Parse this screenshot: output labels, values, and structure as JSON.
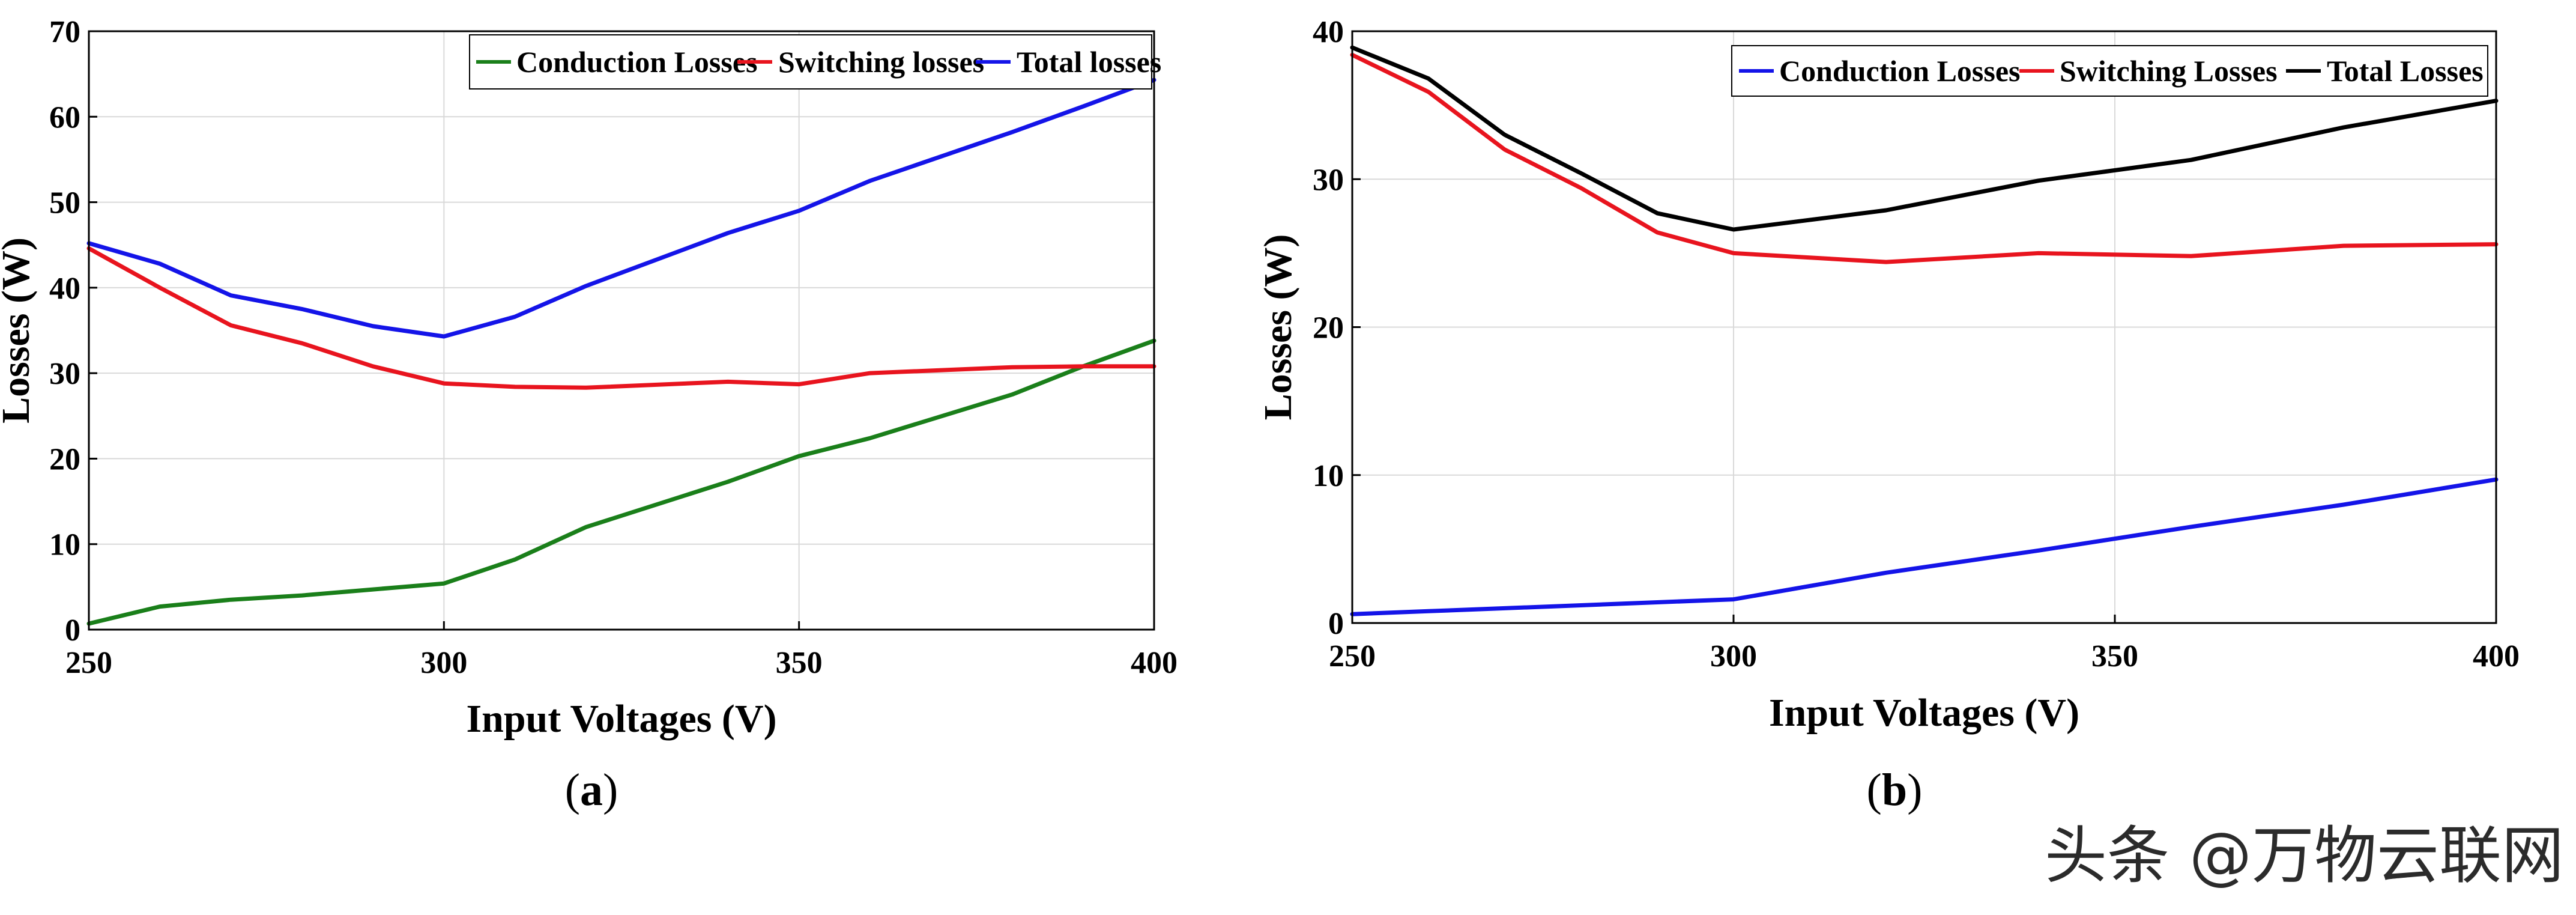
{
  "chart_data": [
    {
      "type": "line",
      "panel": "a",
      "caption": "(a)",
      "caption_letter": "a",
      "xlabel": "Input Voltages (V)",
      "ylabel": "Losses (W)",
      "xlim": [
        250,
        400
      ],
      "ylim": [
        0,
        70
      ],
      "xticks": [
        250,
        300,
        350,
        400
      ],
      "yticks": [
        0,
        10,
        20,
        30,
        40,
        50,
        60,
        70
      ],
      "grid": true,
      "legend_position": "top-right",
      "series": [
        {
          "name": "Conduction Losses",
          "color": "#1a7f1a",
          "x": [
            250,
            260,
            270,
            280,
            290,
            300,
            310,
            320,
            340,
            350,
            360,
            380,
            390,
            400
          ],
          "y": [
            0.7,
            2.7,
            3.5,
            4.0,
            4.7,
            5.4,
            8.2,
            12.0,
            17.3,
            20.3,
            22.4,
            27.5,
            30.8,
            33.8
          ]
        },
        {
          "name": "Switching losses",
          "color": "#e8141e",
          "x": [
            250,
            260,
            270,
            280,
            290,
            300,
            310,
            320,
            340,
            350,
            360,
            380,
            390,
            400
          ],
          "y": [
            44.6,
            40.0,
            35.6,
            33.5,
            30.8,
            28.8,
            28.4,
            28.3,
            29.0,
            28.7,
            30.0,
            30.7,
            30.8,
            30.8
          ]
        },
        {
          "name": "Total losses",
          "color": "#1414e8",
          "x": [
            250,
            260,
            270,
            280,
            290,
            300,
            310,
            320,
            340,
            350,
            360,
            380,
            390,
            400
          ],
          "y": [
            45.2,
            42.8,
            39.1,
            37.5,
            35.5,
            34.3,
            36.6,
            40.2,
            46.4,
            49.0,
            52.5,
            58.2,
            61.2,
            64.3
          ]
        }
      ]
    },
    {
      "type": "line",
      "panel": "b",
      "caption": "(b)",
      "caption_letter": "b",
      "xlabel": "Input Voltages (V)",
      "ylabel": "Losses (W)",
      "xlim": [
        250,
        400
      ],
      "ylim": [
        0,
        40
      ],
      "xticks": [
        250,
        300,
        350,
        400
      ],
      "yticks": [
        0,
        10,
        20,
        30,
        40
      ],
      "grid": true,
      "legend_position": "top-right",
      "series": [
        {
          "name": "Conduction Losses",
          "color": "#1414e8",
          "x": [
            250,
            260,
            270,
            280,
            290,
            300,
            320,
            340,
            360,
            380,
            400
          ],
          "y": [
            0.6,
            0.8,
            1.0,
            1.2,
            1.4,
            1.6,
            3.4,
            4.9,
            6.5,
            8.0,
            9.7
          ]
        },
        {
          "name": "Switching Losses",
          "color": "#e8141e",
          "x": [
            250,
            260,
            270,
            280,
            290,
            300,
            320,
            340,
            360,
            380,
            400
          ],
          "y": [
            38.4,
            35.9,
            32.0,
            29.4,
            26.4,
            25.0,
            24.4,
            25.0,
            24.8,
            25.5,
            25.6
          ]
        },
        {
          "name": "Total Losses",
          "color": "#000000",
          "x": [
            250,
            260,
            270,
            280,
            290,
            300,
            320,
            340,
            360,
            380,
            400
          ],
          "y": [
            38.9,
            36.8,
            33.0,
            30.4,
            27.7,
            26.6,
            27.9,
            29.9,
            31.3,
            33.5,
            35.3
          ]
        }
      ]
    }
  ],
  "watermark": "头条 @万物云联网"
}
